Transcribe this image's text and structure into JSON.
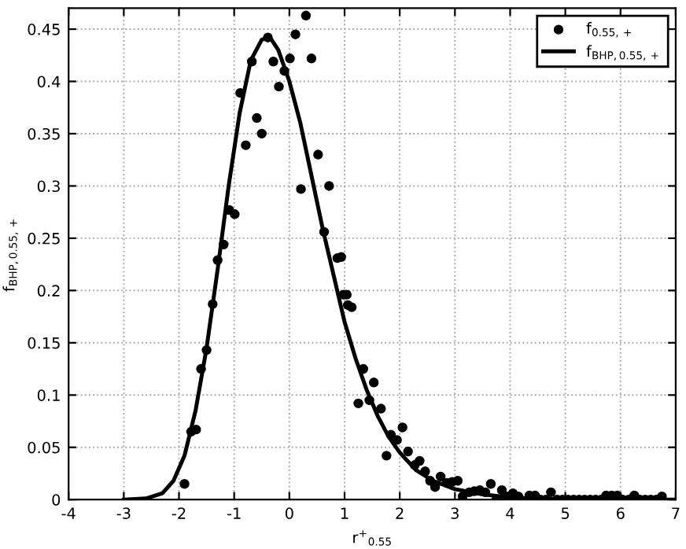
{
  "chart_data": {
    "type": "scatter",
    "xlabel": "r$^{+}$$_{0.55}$",
    "ylabel": "f$_{BHP,0.55,+}$",
    "xlim": [
      -4,
      7
    ],
    "ylim": [
      0,
      0.47
    ],
    "xticks": [
      -4,
      -3,
      -2,
      -1,
      0,
      1,
      2,
      3,
      4,
      5,
      6,
      7
    ],
    "yticks": [
      0,
      0.05,
      0.1,
      0.15,
      0.2,
      0.25,
      0.3,
      0.35,
      0.4,
      0.45
    ],
    "grid": true,
    "legend": "top right",
    "series": [
      {
        "name": "f$_{0.55,+}$",
        "marker": "circle",
        "color": "#000000",
        "x": [
          -1.9,
          -1.78,
          -1.69,
          -1.6,
          -1.5,
          -1.39,
          -1.3,
          -1.19,
          -1.09,
          -0.99,
          -0.89,
          -0.79,
          -0.68,
          -0.59,
          -0.5,
          -0.39,
          -0.29,
          -0.19,
          -0.09,
          0.01,
          0.11,
          0.21,
          0.3,
          0.4,
          0.52,
          0.63,
          0.72,
          0.87,
          0.94,
          0.98,
          1.04,
          1.06,
          1.13,
          1.25,
          1.34,
          1.45,
          1.53,
          1.66,
          1.76,
          1.84,
          1.95,
          2.05,
          2.15,
          2.27,
          2.36,
          2.46,
          2.55,
          2.64,
          2.74,
          2.85,
          2.95,
          3.05,
          3.14,
          3.26,
          3.35,
          3.45,
          3.55,
          3.65,
          3.75,
          3.85,
          3.94,
          4.05,
          4.15,
          4.35,
          4.45,
          4.55,
          4.65,
          4.74,
          4.85,
          4.95,
          5.05,
          5.15,
          5.25,
          5.35,
          5.45,
          5.55,
          5.65,
          5.74,
          5.84,
          5.94,
          6.04,
          6.15,
          6.25,
          6.35,
          6.45,
          6.55,
          6.65,
          6.75
        ],
        "values": [
          0.015,
          0.065,
          0.067,
          0.125,
          0.143,
          0.187,
          0.229,
          0.244,
          0.277,
          0.273,
          0.389,
          0.339,
          0.419,
          0.365,
          0.35,
          0.442,
          0.419,
          0.395,
          0.41,
          0.422,
          0.445,
          0.297,
          0.463,
          0.422,
          0.33,
          0.256,
          0.3,
          0.231,
          0.232,
          0.196,
          0.196,
          0.186,
          0.184,
          0.092,
          0.125,
          0.095,
          0.112,
          0.087,
          0.042,
          0.062,
          0.057,
          0.069,
          0.046,
          0.033,
          0.037,
          0.027,
          0.018,
          0.012,
          0.022,
          0.016,
          0.017,
          0.018,
          0.003,
          0.007,
          0.008,
          0.009,
          0.007,
          0.015,
          0.0,
          0.009,
          0.003,
          0.006,
          0.003,
          0.004,
          0.004,
          0.0,
          0.0,
          0.007,
          0.0,
          0.0,
          0.0,
          0.0,
          0.0,
          0.0,
          0.0,
          0.0,
          0.0,
          0.004,
          0.004,
          0.004,
          0.0,
          0.0,
          0.004,
          0.0,
          0.0,
          0.0,
          0.0,
          0.003
        ]
      },
      {
        "name": "f$_{BHP,0.55,+}$",
        "type": "line",
        "marker": "none",
        "line_style": "solid",
        "color": "#000000",
        "x": [
          -3,
          -2.6,
          -2.3,
          -2.1,
          -1.9,
          -1.7,
          -1.5,
          -1.3,
          -1.1,
          -0.9,
          -0.7,
          -0.5,
          -0.35,
          -0.2,
          0,
          0.2,
          0.4,
          0.6,
          0.8,
          1.0,
          1.2,
          1.4,
          1.6,
          1.8,
          2.0,
          2.3,
          2.6,
          3,
          3.5,
          4,
          5,
          6,
          7
        ],
        "values": [
          0,
          0.001,
          0.006,
          0.018,
          0.042,
          0.085,
          0.145,
          0.22,
          0.3,
          0.37,
          0.42,
          0.44,
          0.442,
          0.43,
          0.4,
          0.36,
          0.31,
          0.26,
          0.215,
          0.17,
          0.135,
          0.105,
          0.08,
          0.06,
          0.045,
          0.028,
          0.018,
          0.01,
          0.005,
          0.002,
          0,
          0,
          0
        ]
      }
    ]
  }
}
